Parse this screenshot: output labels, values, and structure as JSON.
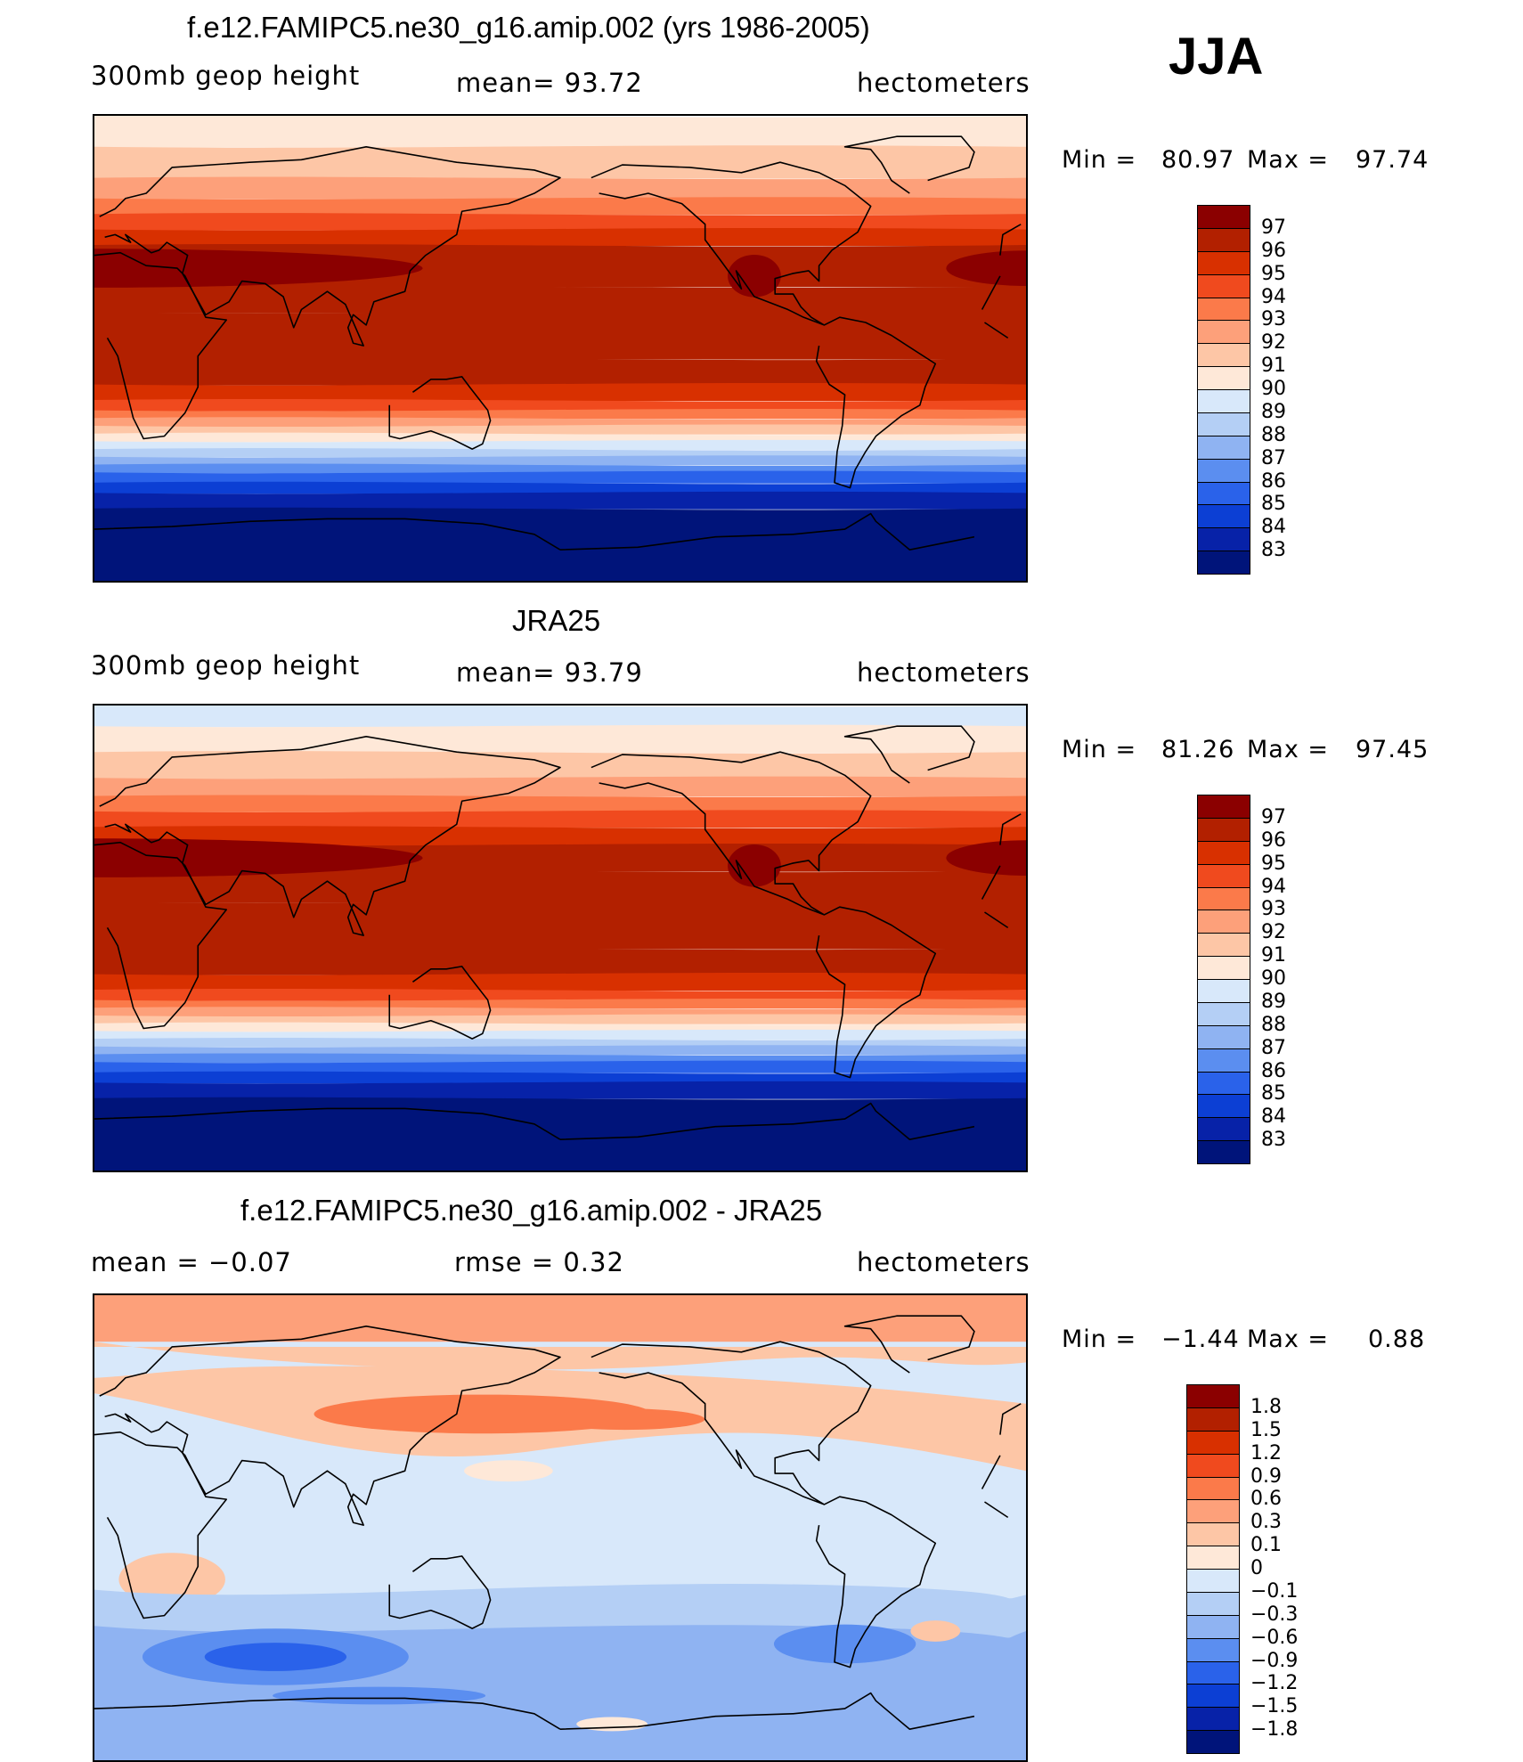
{
  "season": "JJA",
  "panels": [
    {
      "id": "model",
      "title": "f.e12.FAMIPC5.ne30_g16.amip.002 (yrs 1986-2005)",
      "left_label": "300mb  geop  height",
      "center_label": "mean=   93.72",
      "right_label": "hectometers",
      "min_label": "Min  =",
      "min_value": "80.97",
      "max_label": "Max  =",
      "max_value": "97.74",
      "field_type": "absolute"
    },
    {
      "id": "obs",
      "title": "JRA25",
      "left_label": "300mb  geop  height",
      "center_label": "mean=   93.79",
      "right_label": "hectometers",
      "min_label": "Min  =",
      "min_value": "81.26",
      "max_label": "Max  =",
      "max_value": "97.45",
      "field_type": "absolute"
    },
    {
      "id": "diff",
      "title": "f.e12.FAMIPC5.ne30_g16.amip.002 - JRA25",
      "left_label": "mean  =    −0.07",
      "center_label": "rmse  =     0.32",
      "right_label": "hectometers",
      "min_label": "Min  =",
      "min_value": "−1.44",
      "max_label": "Max  =",
      "max_value": "0.88",
      "field_type": "difference"
    }
  ],
  "colorbar_abs": {
    "labels": [
      "97",
      "96",
      "95",
      "94",
      "93",
      "92",
      "91",
      "90",
      "89",
      "88",
      "87",
      "86",
      "85",
      "84",
      "83"
    ],
    "colors": [
      "#8b0000",
      "#b22000",
      "#d83000",
      "#f04a1e",
      "#fb7a4a",
      "#fda07a",
      "#fdc6a6",
      "#fee8d8",
      "#d8e8fa",
      "#b4cff5",
      "#8fb3f2",
      "#5b8ef0",
      "#2a62ea",
      "#0c3fd4",
      "#0722a8",
      "#00147a"
    ]
  },
  "colorbar_diff": {
    "labels": [
      "1.8",
      "1.5",
      "1.2",
      "0.9",
      "0.6",
      "0.3",
      "0.1",
      "0",
      "−0.1",
      "−0.3",
      "−0.6",
      "−0.9",
      "−1.2",
      "−1.5",
      "−1.8"
    ],
    "colors": [
      "#8b0000",
      "#b22000",
      "#d83000",
      "#f04a1e",
      "#fb7a4a",
      "#fda07a",
      "#fdc6a6",
      "#fee8d8",
      "#d8e8fa",
      "#b4cff5",
      "#8fb3f2",
      "#5b8ef0",
      "#2a62ea",
      "#0c3fd4",
      "#0722a8",
      "#00147a"
    ]
  }
}
